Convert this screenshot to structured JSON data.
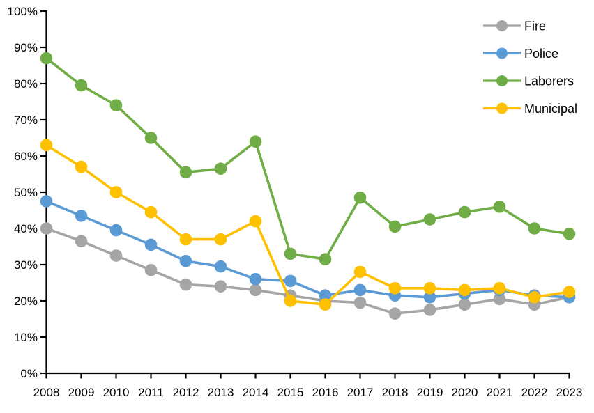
{
  "chart_data": {
    "type": "line",
    "title": "",
    "xlabel": "",
    "ylabel": "",
    "categories": [
      "2008",
      "2009",
      "2010",
      "2011",
      "2012",
      "2013",
      "2014",
      "2015",
      "2016",
      "2017",
      "2018",
      "2019",
      "2020",
      "2021",
      "2022",
      "2023"
    ],
    "series": [
      {
        "name": "Fire",
        "color": "#A5A5A5",
        "values": [
          40,
          36.5,
          32.5,
          28.5,
          24.5,
          24,
          23,
          21.5,
          20,
          19.5,
          16.5,
          17.5,
          19,
          20.5,
          19,
          21
        ]
      },
      {
        "name": "Police",
        "color": "#5B9BD5",
        "values": [
          47.5,
          43.5,
          39.5,
          35.5,
          31,
          29.5,
          26,
          25.5,
          21.5,
          23,
          21.5,
          21,
          22,
          23,
          21.5,
          21
        ]
      },
      {
        "name": "Laborers",
        "color": "#70AD47",
        "values": [
          87,
          79.5,
          74,
          65,
          55.5,
          56.5,
          64,
          33,
          31.5,
          48.5,
          40.5,
          42.5,
          44.5,
          46,
          40,
          38.5
        ]
      },
      {
        "name": "Municipal",
        "color": "#FFC000",
        "values": [
          63,
          57,
          50,
          44.5,
          37,
          37,
          42,
          20,
          19,
          28,
          23.5,
          23.5,
          23,
          23.5,
          21,
          22.5
        ]
      }
    ],
    "ylim": [
      0,
      100
    ],
    "ytick_step": 10,
    "ytick_suffix": "%",
    "grid": false,
    "legend_position": "top-right",
    "legend_labels": [
      "Fire",
      "Police",
      "Laborers",
      "Municipal"
    ],
    "axis_color": "#000000"
  }
}
